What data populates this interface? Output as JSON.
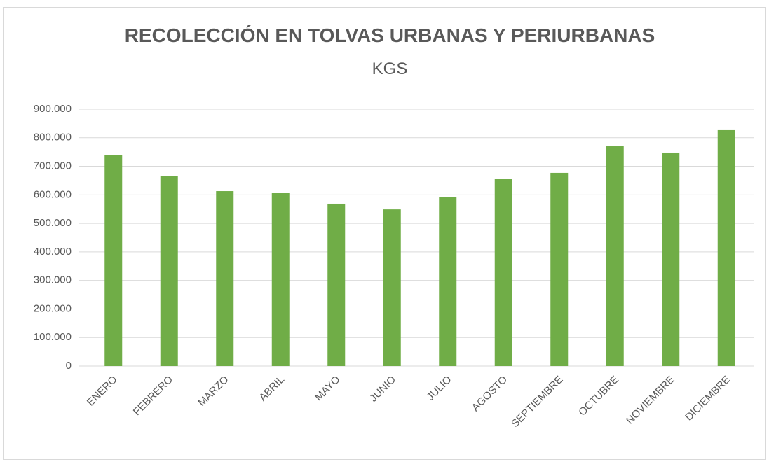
{
  "chart_data": {
    "type": "bar",
    "title": "RECOLECCIÓN EN TOLVAS URBANAS Y PERIURBANAS",
    "subtitle": "KGS",
    "categories": [
      "ENERO",
      "FEBRERO",
      "MARZO",
      "ABRIL",
      "MAYO",
      "JUNIO",
      "JULIO",
      "AGOSTO",
      "SEPTIEMBRE",
      "OCTUBRE",
      "NOVIEMBRE",
      "DICIEMBRE"
    ],
    "values": [
      740000,
      667000,
      613000,
      608000,
      569000,
      549000,
      593000,
      657000,
      677000,
      770000,
      748000,
      829000
    ],
    "color": "#70ad47",
    "ylim": [
      0,
      900000
    ],
    "yticks": [
      0,
      {
        "value": 100000,
        "label": "100.000"
      },
      {
        "value": 200000,
        "label": "200.000"
      },
      {
        "value": 300000,
        "label": "300.000"
      },
      {
        "value": 400000,
        "label": "400.000"
      },
      {
        "value": 500000,
        "label": "500.000"
      },
      {
        "value": 600000,
        "label": "600.000"
      },
      {
        "value": 700000,
        "label": "700.000"
      },
      {
        "value": 800000,
        "label": "800.000"
      },
      {
        "value": 900000,
        "label": "900.000"
      }
    ],
    "grid": true
  }
}
